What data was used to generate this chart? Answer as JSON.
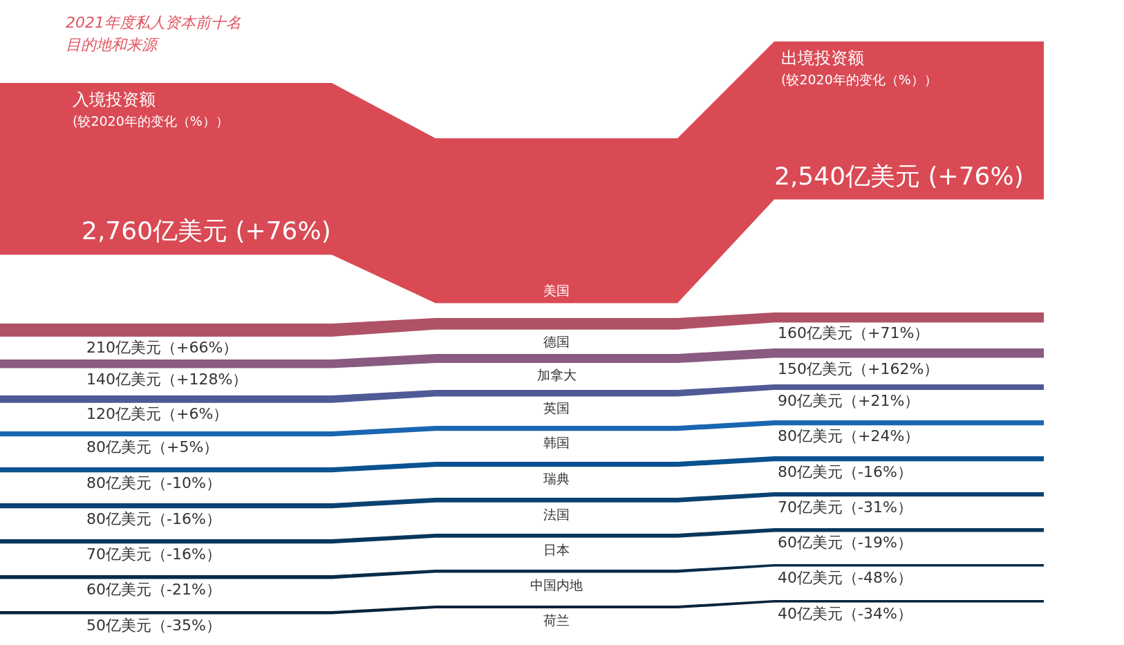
{
  "chart_data": {
    "type": "other",
    "title": "2021年度私人资本前十名",
    "subtitle": "目的地和来源",
    "categories": [
      "美国",
      "德国",
      "加拿大",
      "英国",
      "韩国",
      "瑞典",
      "法国",
      "日本",
      "中国内地",
      "荷兰"
    ],
    "colors": [
      "#d94a55",
      "#b05266",
      "#8a5a80",
      "#4f5a96",
      "#1a66b0",
      "#0b5290",
      "#0a4272",
      "#08365c",
      "#062c4a",
      "#05233a"
    ],
    "series": [
      {
        "name": "入境投资额",
        "values": [
          2760,
          210,
          140,
          120,
          80,
          80,
          80,
          70,
          60,
          50
        ],
        "value_labels": [
          "2,760亿美元 (+76%)",
          "210亿美元（+66%）",
          "140亿美元（+128%）",
          "120亿美元（+6%）",
          "80亿美元（+5%）",
          "80亿美元（-10%）",
          "80亿美元（-16%）",
          "70亿美元（-16%）",
          "60亿美元（-21%）",
          "50亿美元（-35%）"
        ]
      },
      {
        "name": "出境投资额",
        "values": [
          2540,
          160,
          150,
          90,
          80,
          80,
          70,
          60,
          40,
          40
        ],
        "value_labels": [
          "2,540亿美元 (+76%)",
          "160亿美元（+71%）",
          "150亿美元（+162%）",
          "90亿美元（+21%）",
          "80亿美元（+24%）",
          "80亿美元（-16%）",
          "70亿美元（-31%）",
          "60亿美元（-19%）",
          "40亿美元（-48%）",
          "40亿美元（-34%）"
        ]
      }
    ],
    "annotations": [
      "(较2020年的变化（%））",
      "(较2020年的变化（%））"
    ]
  }
}
